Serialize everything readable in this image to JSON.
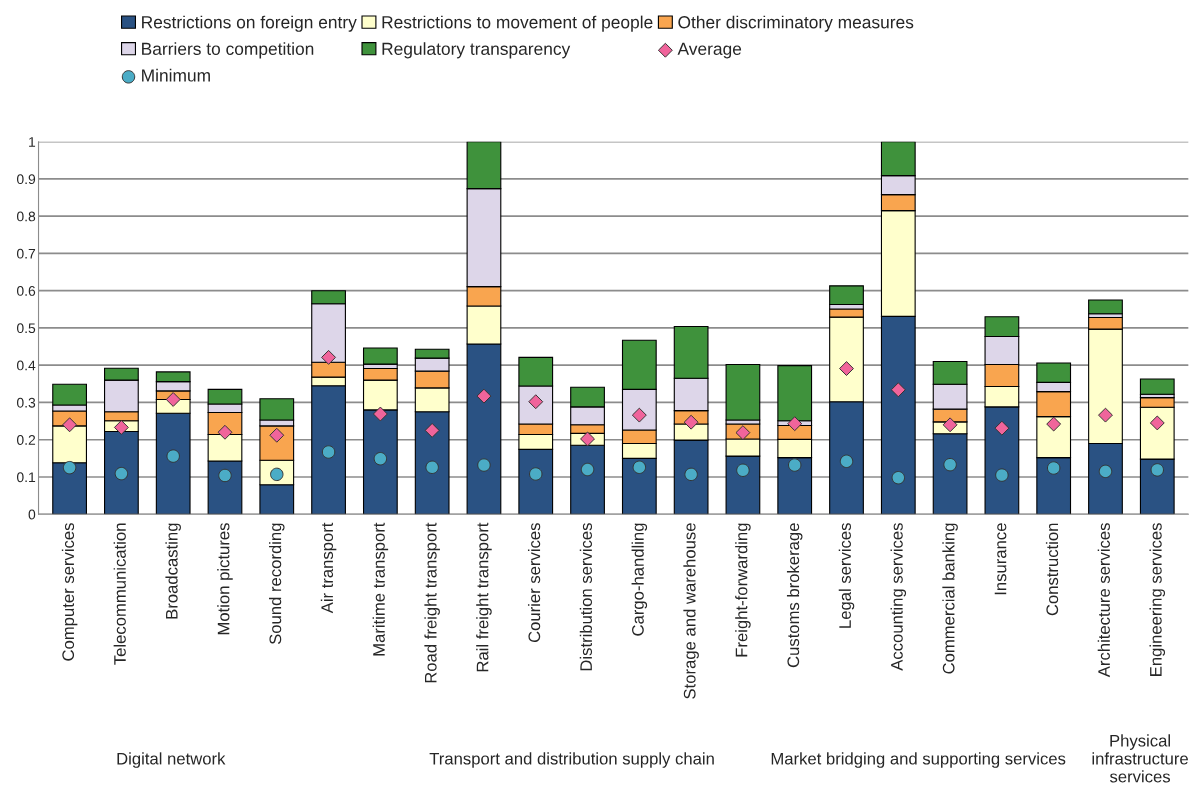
{
  "chart_data": {
    "type": "bar",
    "stacked": true,
    "categories": [
      "Computer services",
      "Telecommunication",
      "Broadcasting",
      "Motion pictures",
      "Sound recording",
      "Air transport",
      "Maritime transport",
      "Road freight transport",
      "Rail freight transport",
      "Courier services",
      "Distribution services",
      "Cargo-handling",
      "Storage and warehouse",
      "Freight-forwarding",
      "Customs brokerage",
      "Legal services",
      "Accounting services",
      "Commercial banking",
      "Insurance",
      "Construction",
      "Architecture services",
      "Engineering services"
    ],
    "series": [
      {
        "name": "Restrictions on foreign entry",
        "color": "#2a5283",
        "values": [
          0.138,
          0.222,
          0.271,
          0.143,
          0.079,
          0.345,
          0.28,
          0.275,
          0.457,
          0.174,
          0.185,
          0.15,
          0.199,
          0.156,
          0.152,
          0.302,
          0.531,
          0.216,
          0.288,
          0.152,
          0.19,
          0.148
        ]
      },
      {
        "name": "Restrictions to movement of people",
        "color": "#ffffcc",
        "values": [
          0.099,
          0.029,
          0.037,
          0.071,
          0.066,
          0.023,
          0.08,
          0.064,
          0.102,
          0.04,
          0.032,
          0.04,
          0.043,
          0.046,
          0.049,
          0.227,
          0.284,
          0.032,
          0.055,
          0.11,
          0.307,
          0.139
        ]
      },
      {
        "name": "Other discriminatory measures",
        "color": "#f9a54f",
        "values": [
          0.04,
          0.024,
          0.023,
          0.059,
          0.092,
          0.04,
          0.031,
          0.045,
          0.052,
          0.028,
          0.023,
          0.036,
          0.036,
          0.04,
          0.037,
          0.022,
          0.043,
          0.034,
          0.059,
          0.067,
          0.031,
          0.026
        ]
      },
      {
        "name": "Barriers to competition",
        "color": "#ddd6e9",
        "values": [
          0.016,
          0.085,
          0.025,
          0.023,
          0.016,
          0.157,
          0.012,
          0.035,
          0.263,
          0.102,
          0.048,
          0.109,
          0.087,
          0.011,
          0.013,
          0.012,
          0.051,
          0.067,
          0.075,
          0.025,
          0.01,
          0.009
        ]
      },
      {
        "name": "Regulatory transparency",
        "color": "#3f923c",
        "values": [
          0.056,
          0.032,
          0.026,
          0.039,
          0.057,
          0.035,
          0.043,
          0.024,
          0.126,
          0.077,
          0.053,
          0.132,
          0.139,
          0.149,
          0.148,
          0.05,
          0.091,
          0.061,
          0.053,
          0.052,
          0.037,
          0.041
        ]
      },
      {
        "name": "Average",
        "type": "scatter",
        "marker": "diamond",
        "color": "#f0649b",
        "x": [
          "Computer services",
          "Telecommunication",
          "Broadcasting",
          "Motion pictures",
          "Sound recording",
          "Air transport",
          "Maritime transport",
          "Road freight transport",
          "Rail freight transport",
          "Courier services",
          "Distribution services",
          "Cargo-handling",
          "Storage and warehouse",
          "Freight-forwarding",
          "Customs brokerage",
          "Legal services",
          "Accounting services",
          "Commercial banking",
          "Insurance",
          "Construction",
          "Architecture services",
          "Engineering services"
        ],
        "values": [
          0.24,
          0.233,
          0.308,
          0.22,
          0.212,
          0.421,
          0.269,
          0.225,
          0.317,
          0.302,
          0.202,
          0.266,
          0.247,
          0.219,
          0.243,
          0.391,
          0.334,
          0.24,
          0.231,
          0.242,
          0.266,
          0.245
        ]
      },
      {
        "name": "Minimum",
        "type": "scatter",
        "marker": "circle",
        "color": "#4bacc6",
        "x": [
          "Computer services",
          "Telecommunication",
          "Broadcasting",
          "Motion pictures",
          "Sound recording",
          "Air transport",
          "Maritime transport",
          "Road freight transport",
          "Rail freight transport",
          "Courier services",
          "Distribution services",
          "Cargo-handling",
          "Storage and warehouse",
          "Freight-forwarding",
          "Customs brokerage",
          "Legal services",
          "Accounting services",
          "Commercial banking",
          "Insurance",
          "Construction",
          "Architecture services",
          "Engineering services"
        ],
        "values": [
          0.125,
          0.109,
          0.156,
          0.104,
          0.107,
          0.167,
          0.149,
          0.126,
          0.132,
          0.108,
          0.12,
          0.126,
          0.107,
          0.118,
          0.132,
          0.142,
          0.098,
          0.133,
          0.105,
          0.124,
          0.115,
          0.119
        ]
      }
    ],
    "ylim": [
      0,
      1
    ],
    "yticks": [
      0,
      0.1,
      0.2,
      0.3,
      0.4,
      0.5,
      0.6,
      0.7,
      0.8,
      0.9,
      1
    ],
    "grid": "y",
    "legend": "top",
    "annotations": [
      "Digital network",
      "Transport and distribution supply chain",
      "Market bridging and supporting services",
      "Physical infrastructure services"
    ]
  }
}
